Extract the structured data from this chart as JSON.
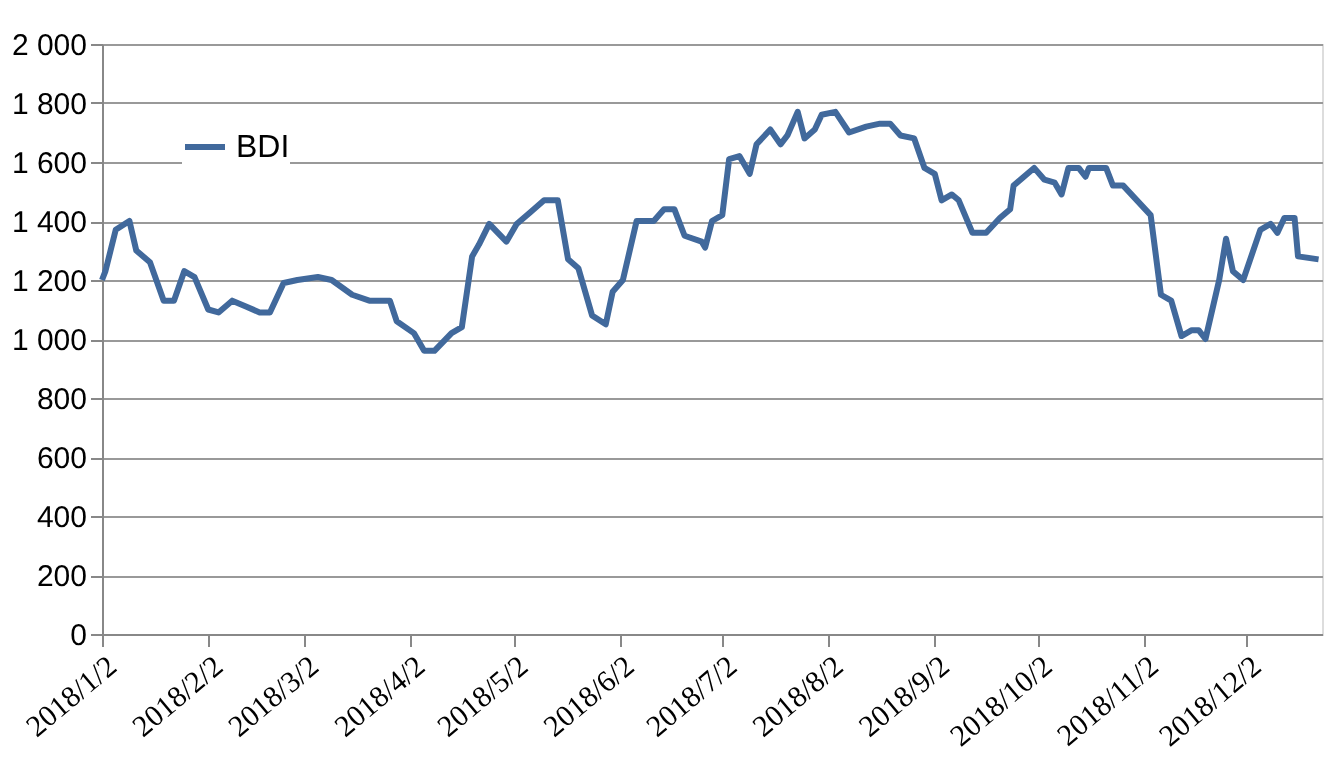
{
  "chart_data": {
    "type": "line",
    "x": [
      "2018-01-02",
      "2018-01-03",
      "2018-01-06",
      "2018-01-10",
      "2018-01-12",
      "2018-01-16",
      "2018-01-20",
      "2018-01-23",
      "2018-01-26",
      "2018-01-29",
      "2018-02-02",
      "2018-02-05",
      "2018-02-09",
      "2018-02-13",
      "2018-02-17",
      "2018-02-20",
      "2018-02-24",
      "2018-02-28",
      "2018-03-06",
      "2018-03-10",
      "2018-03-16",
      "2018-03-21",
      "2018-03-27",
      "2018-03-29",
      "2018-04-03",
      "2018-04-06",
      "2018-04-09",
      "2018-04-14",
      "2018-04-17",
      "2018-04-20",
      "2018-04-22",
      "2018-04-25",
      "2018-04-30",
      "2018-05-03",
      "2018-05-07",
      "2018-05-11",
      "2018-05-15",
      "2018-05-18",
      "2018-05-21",
      "2018-05-25",
      "2018-05-29",
      "2018-05-31",
      "2018-06-03",
      "2018-06-07",
      "2018-06-12",
      "2018-06-15",
      "2018-06-18",
      "2018-06-21",
      "2018-06-26",
      "2018-06-27",
      "2018-06-29",
      "2018-07-02",
      "2018-07-04",
      "2018-07-07",
      "2018-07-10",
      "2018-07-12",
      "2018-07-16",
      "2018-07-19",
      "2018-07-21",
      "2018-07-24",
      "2018-07-26",
      "2018-07-29",
      "2018-07-31",
      "2018-08-04",
      "2018-08-08",
      "2018-08-13",
      "2018-08-17",
      "2018-08-20",
      "2018-08-23",
      "2018-08-27",
      "2018-08-30",
      "2018-09-02",
      "2018-09-04",
      "2018-09-07",
      "2018-09-09",
      "2018-09-13",
      "2018-09-17",
      "2018-09-21",
      "2018-09-24",
      "2018-09-25",
      "2018-10-01",
      "2018-10-04",
      "2018-10-07",
      "2018-10-09",
      "2018-10-11",
      "2018-10-14",
      "2018-10-16",
      "2018-10-17",
      "2018-10-22",
      "2018-10-24",
      "2018-10-27",
      "2018-10-31",
      "2018-11-04",
      "2018-11-07",
      "2018-11-10",
      "2018-11-13",
      "2018-11-16",
      "2018-11-18",
      "2018-11-20",
      "2018-11-24",
      "2018-11-26",
      "2018-11-28",
      "2018-12-01",
      "2018-12-06",
      "2018-12-09",
      "2018-12-11",
      "2018-12-13",
      "2018-12-16",
      "2018-12-17",
      "2018-12-23"
    ],
    "series": [
      {
        "name": "BDI",
        "color": "#41699c",
        "values": [
          1200,
          1230,
          1370,
          1400,
          1300,
          1260,
          1130,
          1130,
          1230,
          1210,
          1100,
          1090,
          1130,
          1110,
          1090,
          1090,
          1190,
          1200,
          1210,
          1200,
          1150,
          1130,
          1130,
          1060,
          1020,
          960,
          960,
          1020,
          1040,
          1280,
          1320,
          1390,
          1330,
          1390,
          1430,
          1470,
          1470,
          1270,
          1240,
          1080,
          1050,
          1160,
          1200,
          1400,
          1400,
          1440,
          1440,
          1350,
          1330,
          1310,
          1400,
          1420,
          1610,
          1620,
          1560,
          1660,
          1710,
          1660,
          1690,
          1770,
          1680,
          1710,
          1760,
          1770,
          1700,
          1720,
          1730,
          1730,
          1690,
          1680,
          1580,
          1560,
          1470,
          1490,
          1470,
          1360,
          1360,
          1410,
          1440,
          1520,
          1580,
          1540,
          1530,
          1490,
          1580,
          1580,
          1550,
          1580,
          1580,
          1520,
          1520,
          1470,
          1420,
          1150,
          1130,
          1010,
          1030,
          1030,
          1000,
          1200,
          1340,
          1230,
          1200,
          1370,
          1390,
          1360,
          1410,
          1410,
          1280,
          1270
        ]
      }
    ],
    "xlim": [
      "2018-01-02",
      "2018-12-24"
    ],
    "xticks": [
      {
        "value": "2018-01-02",
        "label": "2018/1/2"
      },
      {
        "value": "2018-02-02",
        "label": "2018/2/2"
      },
      {
        "value": "2018-03-02",
        "label": "2018/3/2"
      },
      {
        "value": "2018-04-02",
        "label": "2018/4/2"
      },
      {
        "value": "2018-05-02",
        "label": "2018/5/2"
      },
      {
        "value": "2018-06-02",
        "label": "2018/6/2"
      },
      {
        "value": "2018-07-02",
        "label": "2018/7/2"
      },
      {
        "value": "2018-08-02",
        "label": "2018/8/2"
      },
      {
        "value": "2018-09-02",
        "label": "2018/9/2"
      },
      {
        "value": "2018-10-02",
        "label": "2018/10/2"
      },
      {
        "value": "2018-11-02",
        "label": "2018/11/2"
      },
      {
        "value": "2018-12-02",
        "label": "2018/12/2"
      }
    ],
    "ylim": [
      0,
      2000
    ],
    "yticks": [
      0,
      200,
      400,
      600,
      800,
      {
        "value": 1000,
        "label": "1 000"
      },
      {
        "value": 1200,
        "label": "1 200"
      },
      {
        "value": 1400,
        "label": "1 400"
      },
      {
        "value": 1600,
        "label": "1 600"
      },
      {
        "value": 1800,
        "label": "1 800"
      },
      {
        "value": 2000,
        "label": "2 000"
      }
    ],
    "grid": "y",
    "legend": "top left",
    "line_style": "solid",
    "marker": "none"
  }
}
